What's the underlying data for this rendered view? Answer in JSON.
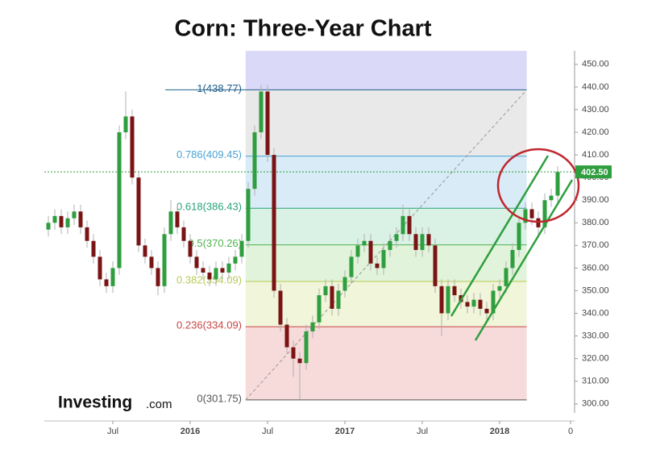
{
  "chart_data": {
    "type": "candlestick",
    "title": "Corn:  Three-Year Chart",
    "logo": {
      "main": "Investing",
      "suffix": ".com"
    },
    "x": [
      1,
      1.5,
      2,
      2.5,
      3,
      3.5,
      4,
      4.5,
      5,
      5.5,
      6,
      6.5,
      7,
      7.5,
      8,
      8.5,
      9,
      9.5,
      10,
      10.5,
      11,
      11.5,
      12,
      12.5,
      13,
      13.5,
      14,
      14.5,
      15,
      15.5,
      16,
      16.5,
      17,
      17.5,
      18,
      18.5,
      19,
      19.5,
      20,
      20.5,
      21,
      21.5,
      22,
      22.5,
      23,
      23.5,
      24,
      24.5,
      25,
      25.5,
      26,
      26.5,
      27,
      27.5,
      28,
      28.5,
      29,
      29.5,
      30,
      30.5,
      31,
      31.5,
      32,
      32.5,
      33,
      33.5,
      34,
      34.5,
      35,
      35.5,
      36,
      36.5,
      37,
      37.5,
      38,
      38.5,
      39,
      39.5,
      40,
      40.5
    ],
    "open": [
      377,
      380,
      383,
      378,
      382,
      385,
      378,
      372,
      365,
      355,
      352,
      360,
      420,
      427,
      400,
      370,
      365,
      360,
      352,
      375,
      385,
      378,
      372,
      365,
      360,
      358,
      355,
      360,
      358,
      362,
      365,
      372,
      395,
      420,
      438,
      410,
      350,
      335,
      325,
      320,
      318,
      332,
      336,
      348,
      352,
      342,
      350,
      356,
      365,
      370,
      372,
      362,
      360,
      368,
      372,
      375,
      383,
      375,
      368,
      375,
      370,
      352,
      340,
      352,
      348,
      345,
      343,
      346,
      342,
      340,
      350,
      352,
      360,
      368,
      380,
      386,
      382,
      378,
      390,
      392
    ],
    "high": [
      383,
      386,
      386,
      385,
      388,
      388,
      381,
      375,
      368,
      358,
      363,
      423,
      438,
      430,
      403,
      373,
      368,
      363,
      378,
      390,
      388,
      381,
      375,
      368,
      363,
      361,
      363,
      363,
      365,
      368,
      375,
      398,
      423,
      441,
      441,
      413,
      353,
      338,
      328,
      323,
      335,
      339,
      351,
      355,
      355,
      353,
      359,
      368,
      373,
      375,
      375,
      365,
      371,
      375,
      378,
      388,
      386,
      378,
      378,
      378,
      373,
      355,
      355,
      355,
      351,
      348,
      349,
      349,
      345,
      353,
      355,
      363,
      371,
      383,
      389,
      389,
      385,
      393,
      395,
      405
    ],
    "low": [
      374,
      377,
      375,
      375,
      379,
      375,
      369,
      362,
      352,
      349,
      349,
      357,
      417,
      397,
      367,
      362,
      357,
      348,
      349,
      372,
      375,
      369,
      362,
      357,
      355,
      352,
      352,
      355,
      355,
      359,
      362,
      369,
      392,
      417,
      407,
      347,
      332,
      322,
      312,
      302,
      315,
      329,
      333,
      345,
      339,
      339,
      347,
      353,
      362,
      367,
      359,
      357,
      357,
      365,
      369,
      372,
      372,
      365,
      365,
      367,
      349,
      330,
      337,
      345,
      342,
      340,
      340,
      339,
      337,
      337,
      347,
      349,
      357,
      365,
      377,
      379,
      375,
      375,
      387,
      389
    ],
    "close": [
      380,
      383,
      378,
      382,
      385,
      378,
      372,
      365,
      355,
      352,
      360,
      420,
      427,
      400,
      370,
      365,
      360,
      352,
      375,
      385,
      378,
      372,
      365,
      360,
      358,
      355,
      360,
      358,
      362,
      365,
      372,
      395,
      420,
      438,
      410,
      350,
      335,
      325,
      320,
      318,
      332,
      336,
      348,
      352,
      342,
      350,
      356,
      365,
      370,
      372,
      362,
      360,
      368,
      372,
      375,
      383,
      375,
      368,
      375,
      370,
      352,
      340,
      352,
      348,
      345,
      343,
      346,
      342,
      340,
      350,
      352,
      360,
      368,
      380,
      386,
      382,
      378,
      390,
      392,
      402.5
    ],
    "up_color": "#2e9e3e",
    "down_color": "#7a1414",
    "xlim": [
      0.6875,
      41.8125
    ],
    "xticks": [
      {
        "value": 6,
        "label": "Jul"
      },
      {
        "value": 12,
        "label": "2016"
      },
      {
        "value": 18,
        "label": "Jul"
      },
      {
        "value": 24,
        "label": "2017"
      },
      {
        "value": 30,
        "label": "Jul"
      },
      {
        "value": 36,
        "label": "2018"
      },
      {
        "value": 41.5,
        "label": "0"
      }
    ],
    "ylim": [
      296,
      456
    ],
    "yticks": [
      {
        "value": 300,
        "label": "300.00"
      },
      {
        "value": 310,
        "label": "310.00"
      },
      {
        "value": 320,
        "label": "320.00"
      },
      {
        "value": 330,
        "label": "330.00"
      },
      {
        "value": 340,
        "label": "340.00"
      },
      {
        "value": 350,
        "label": "350.00"
      },
      {
        "value": 360,
        "label": "360.00"
      },
      {
        "value": 370,
        "label": "370.00"
      },
      {
        "value": 380,
        "label": "380.00"
      },
      {
        "value": 390,
        "label": "390.00"
      },
      {
        "value": 400,
        "label": "400.00"
      },
      {
        "value": 410,
        "label": "410.00"
      },
      {
        "value": 420,
        "label": "420.00"
      },
      {
        "value": 430,
        "label": "430.00"
      },
      {
        "value": 440,
        "label": "440.00"
      },
      {
        "value": 450,
        "label": "450.00"
      }
    ],
    "fib_range": [
      16.3,
      38.1
    ],
    "fib_levels": [
      {
        "value": 301.75,
        "label": "0(301.75)",
        "color": "#555555",
        "band_color": "#f6d3d3"
      },
      {
        "value": 334.09,
        "label": "0.236(334.09)",
        "color": "#c84545",
        "band_color": "#eef3d2"
      },
      {
        "value": 354.09,
        "label": "0.382(354.09)",
        "color": "#b5cc55",
        "band_color": "#dcf1d4"
      },
      {
        "value": 370.26,
        "label": "0.5(370.26)",
        "color": "#4fb34f",
        "band_color": "#d3efe0"
      },
      {
        "value": 386.43,
        "label": "0.618(386.43)",
        "color": "#2aa37a",
        "band_color": "#d2e8f4"
      },
      {
        "value": 409.45,
        "label": "0.786(409.45)",
        "color": "#4aa3d3",
        "band_color": "#e5e5e5"
      },
      {
        "value": 438.77,
        "label": "1(438.77)",
        "color": "#1f5f8b",
        "band_color": "#d3d3f7"
      }
    ],
    "current_price": {
      "value": 402.5,
      "label": "402.50",
      "color": "#2e9e3e"
    }
  }
}
